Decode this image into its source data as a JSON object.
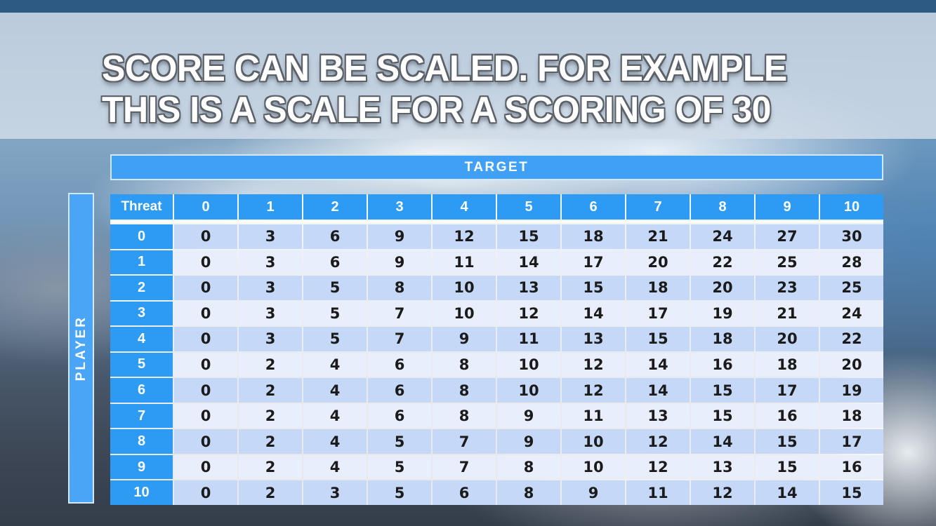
{
  "title": {
    "line1": "SCORE CAN BE SCALED. FOR EXAMPLE",
    "line2": "THIS IS A SCALE FOR A SCORING OF 30"
  },
  "matrix": {
    "target_label": "TARGET",
    "player_label": "PLAYER",
    "corner_label": "Threat"
  },
  "colors": {
    "header_blue": "#2d9af3",
    "banner_blue": "#3fa0f6",
    "player_blue": "#4ba5f7",
    "row_even": "#c6d8f7",
    "row_odd": "#e9eefc",
    "top_bar_navy": "#2d5a82",
    "title_band": "#d1dce7",
    "title_text": "#ffffff"
  },
  "chart_data": {
    "type": "table",
    "title": "TARGET",
    "row_axis_label": "PLAYER",
    "corner_label": "Threat",
    "columns": [
      "0",
      "1",
      "2",
      "3",
      "4",
      "5",
      "6",
      "7",
      "8",
      "9",
      "10"
    ],
    "row_headers": [
      "0",
      "1",
      "2",
      "3",
      "4",
      "5",
      "6",
      "7",
      "8",
      "9",
      "10"
    ],
    "rows": [
      [
        0,
        3,
        6,
        9,
        12,
        15,
        18,
        21,
        24,
        27,
        30
      ],
      [
        0,
        3,
        6,
        9,
        11,
        14,
        17,
        20,
        22,
        25,
        28
      ],
      [
        0,
        3,
        5,
        8,
        10,
        13,
        15,
        18,
        20,
        23,
        25
      ],
      [
        0,
        3,
        5,
        7,
        10,
        12,
        14,
        17,
        19,
        21,
        24
      ],
      [
        0,
        3,
        5,
        7,
        9,
        11,
        13,
        15,
        18,
        20,
        22
      ],
      [
        0,
        2,
        4,
        6,
        8,
        10,
        12,
        14,
        16,
        18,
        20
      ],
      [
        0,
        2,
        4,
        6,
        8,
        10,
        12,
        14,
        15,
        17,
        19
      ],
      [
        0,
        2,
        4,
        6,
        8,
        9,
        11,
        13,
        15,
        16,
        18
      ],
      [
        0,
        2,
        4,
        5,
        7,
        9,
        10,
        12,
        14,
        15,
        17
      ],
      [
        0,
        2,
        4,
        5,
        7,
        8,
        10,
        12,
        13,
        15,
        16
      ],
      [
        0,
        2,
        3,
        5,
        6,
        8,
        9,
        11,
        12,
        14,
        15
      ]
    ]
  }
}
